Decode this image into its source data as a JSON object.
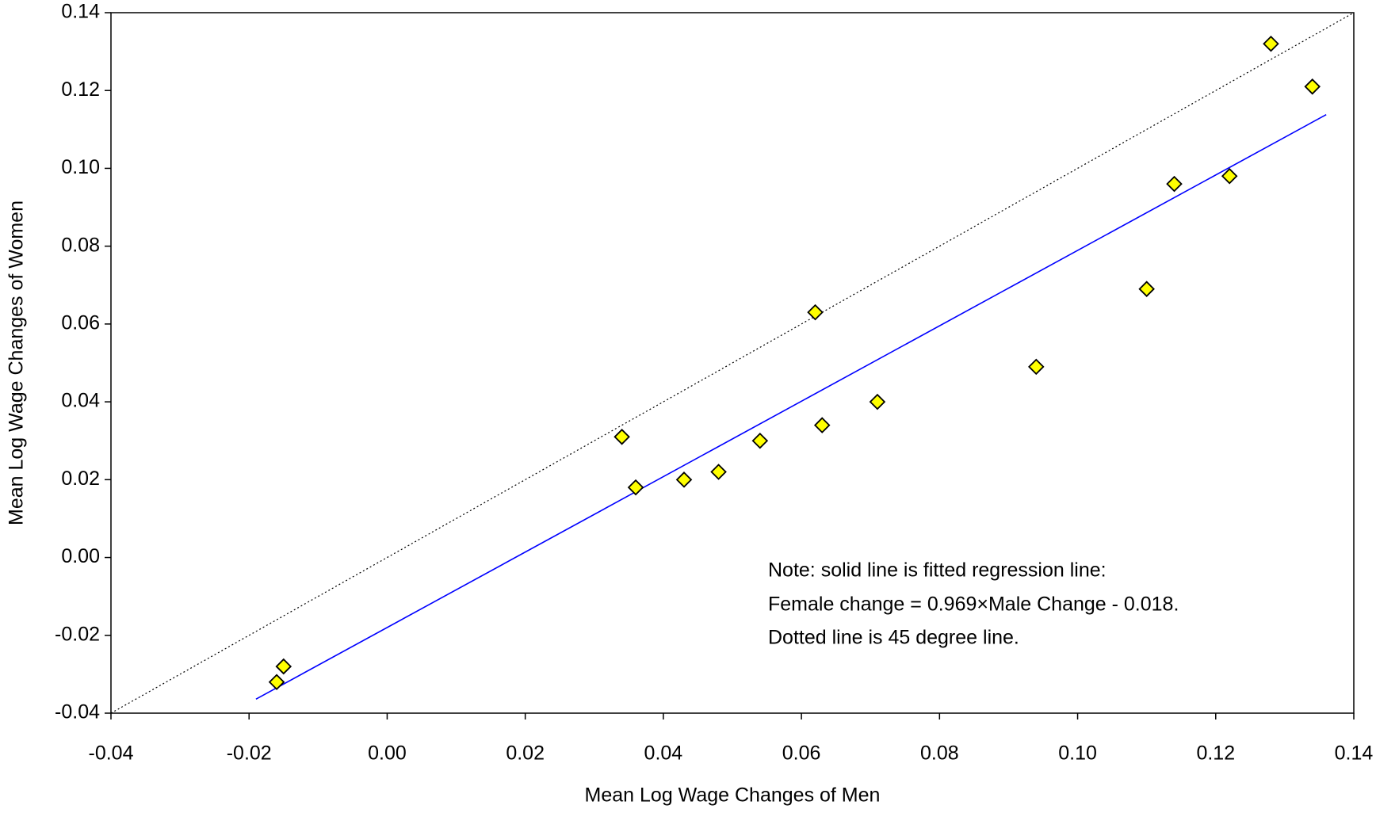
{
  "chart_data": {
    "type": "scatter",
    "x_label": "Mean Log Wage Changes of Men",
    "y_label": "Mean Log Wage Changes of Women",
    "annotation": [
      "Note: solid line is fitted regression line:",
      "Female change = 0.969×Male Change - 0.018.",
      "Dotted line is 45 degree line."
    ],
    "xlim": [
      -0.04,
      0.14
    ],
    "ylim": [
      -0.04,
      0.14
    ],
    "xticks": [
      -0.04,
      -0.02,
      {
        "value": 0,
        "label": "0.00"
      },
      0.02,
      0.04,
      0.06,
      0.08,
      {
        "value": 0.1,
        "label": "0.10"
      },
      0.12,
      0.14
    ],
    "yticks": [
      -0.04,
      -0.02,
      {
        "value": 0,
        "label": "0.00"
      },
      0.02,
      0.04,
      0.06,
      0.08,
      {
        "value": 0.1,
        "label": "0.10"
      },
      0.12,
      0.14
    ],
    "grid": false,
    "series": [
      {
        "type": "scatter",
        "color": "#ffff00",
        "x": [
          -0.016,
          -0.015,
          0.034,
          0.036,
          0.043,
          0.048,
          0.054,
          0.062,
          0.063,
          0.071,
          0.094,
          0.11,
          0.114,
          0.122,
          0.128,
          0.134
        ],
        "values": [
          -0.032,
          -0.028,
          0.031,
          0.018,
          0.02,
          0.022,
          0.03,
          0.063,
          0.034,
          0.04,
          0.049,
          0.069,
          0.096,
          0.098,
          0.132,
          0.121
        ]
      },
      {
        "type": "line",
        "color": "#0000ff",
        "x": [
          -0.019,
          0.136
        ],
        "values": [
          -0.0364,
          0.1138
        ]
      },
      {
        "type": "line",
        "color": "#000000",
        "dash": "dotted",
        "x": [
          -0.04,
          0.14
        ],
        "values": [
          -0.04,
          0.14
        ]
      }
    ]
  }
}
